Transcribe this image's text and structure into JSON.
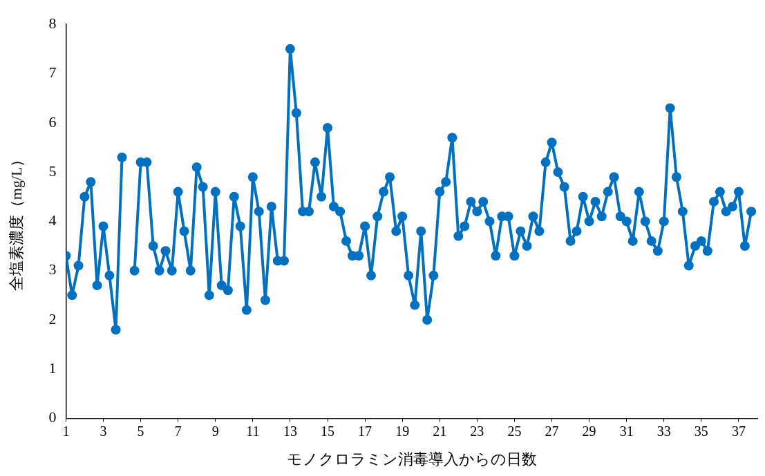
{
  "chart_data": {
    "type": "line",
    "xlabel": "モノクロラミン消毒導入からの日数",
    "ylabel": "全塩素濃度（mg/L）",
    "x": [
      1,
      1.33,
      1.67,
      2,
      2.33,
      2.67,
      3,
      3.33,
      3.67,
      4,
      4.33,
      4.67,
      5,
      5.33,
      5.67,
      6,
      6.33,
      6.67,
      7,
      7.33,
      7.67,
      8,
      8.33,
      8.67,
      9,
      9.33,
      9.67,
      10,
      10.33,
      10.67,
      11,
      11.33,
      11.67,
      12,
      12.33,
      12.67,
      13,
      13.33,
      13.67,
      14,
      14.33,
      14.67,
      15,
      15.33,
      15.67,
      16,
      16.33,
      16.67,
      17,
      17.33,
      17.67,
      18,
      18.33,
      18.67,
      19,
      19.33,
      19.67,
      20,
      20.33,
      20.67,
      21,
      21.33,
      21.67,
      22,
      22.33,
      22.67,
      23,
      23.33,
      23.67,
      24,
      24.33,
      24.67,
      25,
      25.33,
      25.67,
      26,
      26.33,
      26.67,
      27,
      27.33,
      27.67,
      28,
      28.33,
      28.67,
      29,
      29.33,
      29.67,
      30,
      30.33,
      30.67,
      31,
      31.33,
      31.67,
      32,
      32.33,
      32.67,
      33,
      33.33,
      33.67,
      34,
      34.33,
      34.67,
      35,
      35.33,
      35.67,
      36,
      36.33,
      36.67,
      37,
      37.33,
      37.67
    ],
    "series": [
      {
        "color": "#0070c0",
        "values": [
          3.3,
          2.5,
          3.1,
          4.5,
          4.8,
          2.7,
          3.9,
          2.9,
          1.8,
          5.3,
          null,
          3.0,
          5.2,
          5.2,
          3.5,
          3.0,
          3.4,
          3.0,
          4.6,
          3.8,
          3.0,
          5.1,
          4.7,
          2.5,
          4.6,
          2.7,
          2.6,
          4.5,
          3.9,
          2.2,
          4.9,
          4.2,
          2.4,
          4.3,
          3.2,
          3.2,
          7.5,
          6.2,
          4.2,
          4.2,
          5.2,
          4.5,
          5.9,
          4.3,
          4.2,
          3.6,
          3.3,
          3.3,
          3.9,
          2.9,
          4.1,
          4.6,
          4.9,
          3.8,
          4.1,
          2.9,
          2.3,
          3.8,
          2.0,
          2.9,
          4.6,
          4.8,
          5.7,
          3.7,
          3.9,
          4.4,
          4.2,
          4.4,
          4.0,
          3.3,
          4.1,
          4.1,
          3.3,
          3.8,
          3.5,
          4.1,
          3.8,
          5.2,
          5.6,
          5.0,
          4.7,
          3.6,
          3.8,
          4.5,
          4.0,
          4.4,
          4.1,
          4.6,
          4.9,
          4.1,
          4.0,
          3.6,
          4.6,
          4.0,
          3.6,
          3.4,
          4.0,
          6.3,
          4.9,
          4.2,
          3.1,
          3.5,
          3.6,
          3.4,
          4.4,
          4.6,
          4.2,
          4.3,
          4.6,
          3.5,
          4.2
        ]
      }
    ],
    "xlim": [
      1,
      38
    ],
    "xticks": [
      1,
      3,
      5,
      7,
      9,
      11,
      13,
      15,
      17,
      19,
      21,
      23,
      25,
      27,
      29,
      31,
      33,
      35,
      37
    ],
    "ylim": [
      0,
      8
    ],
    "yticks": [
      0,
      1,
      2,
      3,
      4,
      5,
      6,
      7,
      8
    ],
    "grid": false,
    "legend": false,
    "marker": "circle",
    "line_style": "solid"
  }
}
